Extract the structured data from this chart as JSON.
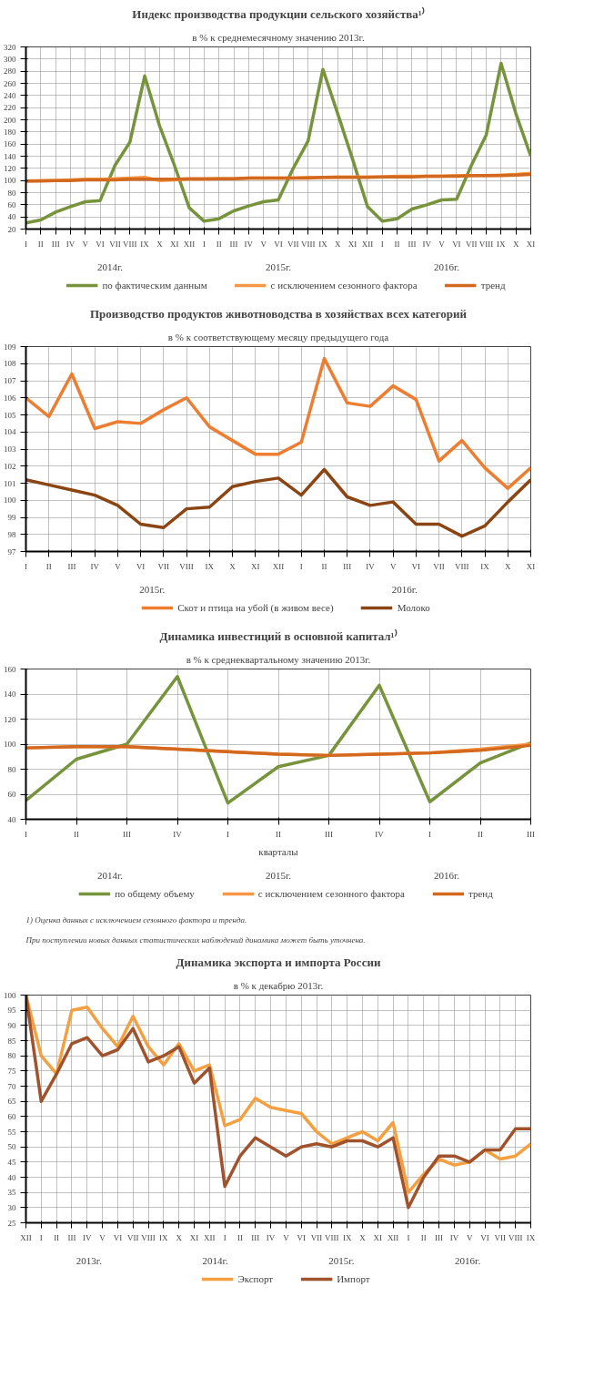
{
  "chart_data": [
    {
      "type": "line",
      "title": "Индекс производства продукции сельского хозяйства¹⁾",
      "subtitle": "в % к среднемесячному значению 2013г.",
      "categories": [
        "I",
        "II",
        "III",
        "IV",
        "V",
        "VI",
        "VII",
        "VIII",
        "IX",
        "X",
        "XI",
        "XII",
        "I",
        "II",
        "III",
        "IV",
        "V",
        "VI",
        "VII",
        "VIII",
        "IX",
        "X",
        "XI",
        "XII",
        "I",
        "II",
        "III",
        "IV",
        "V",
        "VI",
        "VII",
        "VIII",
        "IX",
        "X",
        "XI"
      ],
      "series": [
        {
          "name": "по фактическим данным",
          "color": "#77933c",
          "values": [
            30,
            35,
            48,
            57,
            65,
            67,
            125,
            163,
            272,
            190,
            125,
            55,
            33,
            37,
            50,
            58,
            65,
            68,
            120,
            165,
            283,
            210,
            135,
            57,
            33,
            37,
            53,
            60,
            68,
            69,
            125,
            175,
            293,
            210,
            140
          ]
        },
        {
          "name": "с исключением сезонного фактора",
          "color": "#f79646",
          "values": [
            99,
            100,
            100,
            101,
            102,
            102,
            103,
            104,
            105,
            100,
            101,
            102,
            102,
            103,
            103,
            104,
            104,
            104,
            104,
            105,
            105,
            106,
            106,
            106,
            106,
            107,
            107,
            107,
            107,
            108,
            108,
            108,
            109,
            110,
            112
          ]
        },
        {
          "name": "тренд",
          "color": "#d2691e",
          "values": [
            99,
            99,
            100,
            100,
            101,
            101,
            101,
            102,
            102,
            102,
            102,
            103,
            103,
            103,
            103,
            104,
            104,
            104,
            104,
            104,
            105,
            105,
            105,
            105,
            106,
            106,
            106,
            107,
            107,
            107,
            108,
            108,
            108,
            109,
            110
          ]
        }
      ],
      "ylim": [
        20,
        320
      ],
      "yticks": [
        20,
        40,
        60,
        80,
        100,
        120,
        140,
        160,
        180,
        200,
        220,
        240,
        260,
        280,
        300,
        320
      ],
      "grid": true,
      "legend": "bottom",
      "annotations": [
        "2014г.",
        "2015г.",
        "2016г."
      ]
    },
    {
      "type": "line",
      "title": "Производство продуктов животноводства в хозяйствах всех категорий",
      "subtitle": "в % к соответствующему месяцу предыдущего года",
      "categories": [
        "I",
        "II",
        "III",
        "IV",
        "V",
        "VI",
        "VII",
        "VIII",
        "IX",
        "X",
        "XI",
        "XII",
        "I",
        "II",
        "III",
        "IV",
        "V",
        "VI",
        "VII",
        "VIII",
        "IX",
        "X",
        "XI"
      ],
      "series": [
        {
          "name": "Скот и птица на убой (в живом весе)",
          "color": "#ed7d31",
          "values": [
            106.0,
            104.9,
            107.4,
            104.2,
            104.6,
            104.5,
            105.3,
            106.0,
            104.3,
            103.5,
            102.7,
            102.7,
            103.4,
            108.3,
            105.7,
            105.5,
            106.7,
            105.9,
            102.3,
            103.5,
            101.9,
            100.7,
            101.9
          ]
        },
        {
          "name": "Молоко",
          "color": "#8b4513",
          "values": [
            101.2,
            100.9,
            100.6,
            100.3,
            99.7,
            98.6,
            98.4,
            99.5,
            99.6,
            100.8,
            101.1,
            101.3,
            100.3,
            101.8,
            100.2,
            99.7,
            99.9,
            98.6,
            98.6,
            97.9,
            98.5,
            99.9,
            101.2
          ]
        }
      ],
      "ylim": [
        97,
        109
      ],
      "yticks": [
        97,
        98,
        99,
        100,
        101,
        102,
        103,
        104,
        105,
        106,
        107,
        108,
        109
      ],
      "grid": true,
      "legend": "bottom",
      "annotations": [
        "2015г.",
        "2016г."
      ]
    },
    {
      "type": "line",
      "title": "Динамика инвестиций в основной капитал¹⁾",
      "subtitle": "в % к среднеквартальному значению 2013г.",
      "xlabel": "кварталы",
      "categories": [
        "I",
        "II",
        "III",
        "IV",
        "I",
        "II",
        "III",
        "IV",
        "I",
        "II",
        "III"
      ],
      "series": [
        {
          "name": "по общему объему",
          "color": "#77933c",
          "values": [
            55,
            88,
            100,
            154,
            53,
            82,
            91,
            147,
            54,
            85,
            101
          ]
        },
        {
          "name": "с исключением сезонного фактора",
          "color": "#f79646",
          "values": [
            97,
            98,
            98,
            96,
            94,
            92,
            91,
            92,
            93,
            96,
            100
          ]
        },
        {
          "name": "тренд",
          "color": "#d2691e",
          "values": [
            97,
            98,
            98,
            96,
            94,
            92,
            91,
            92,
            93,
            95,
            99
          ]
        }
      ],
      "ylim": [
        40,
        160
      ],
      "yticks": [
        40,
        60,
        80,
        100,
        120,
        140,
        160
      ],
      "grid": true,
      "legend": "bottom",
      "annotations": [
        "2014г.",
        "2015г.",
        "2016г.",
        {
          "text": "1) Оценка данных с исключением сезонного фактора и тренда."
        },
        {
          "text": "При поступлении новых данных статистических наблюдений динамика может быть уточнена."
        }
      ]
    },
    {
      "type": "line",
      "title": "Динамика экспорта и импорта России",
      "subtitle": "в % к декабрю 2013г.",
      "categories": [
        "XII",
        "I",
        "II",
        "III",
        "IV",
        "V",
        "VI",
        "VII",
        "VIII",
        "IX",
        "X",
        "XI",
        "XII",
        "I",
        "II",
        "III",
        "IV",
        "V",
        "VI",
        "VII",
        "VIII",
        "IX",
        "X",
        "XI",
        "XII",
        "I",
        "II",
        "III",
        "IV",
        "V",
        "VI",
        "VII",
        "VIII",
        "IX"
      ],
      "series": [
        {
          "name": "Экспорт",
          "color": "#f4a040",
          "values": [
            100,
            80,
            74,
            95,
            96,
            89,
            83,
            93,
            83,
            77,
            84,
            75,
            77,
            57,
            59,
            66,
            63,
            62,
            61,
            55,
            51,
            53,
            55,
            52,
            58,
            35,
            41,
            46,
            44,
            45,
            49,
            46,
            47,
            51
          ]
        },
        {
          "name": "Импорт",
          "color": "#a0522d",
          "values": [
            100,
            65,
            74,
            84,
            86,
            80,
            82,
            89,
            78,
            80,
            83,
            71,
            76,
            37,
            47,
            53,
            50,
            47,
            50,
            51,
            50,
            52,
            52,
            50,
            53,
            30,
            40,
            47,
            47,
            45,
            49,
            49,
            56,
            56
          ]
        }
      ],
      "ylim": [
        25,
        100
      ],
      "yticks": [
        25,
        30,
        35,
        40,
        45,
        50,
        55,
        60,
        65,
        70,
        75,
        80,
        85,
        90,
        95,
        100
      ],
      "grid": true,
      "legend": "bottom",
      "annotations": [
        "2013г.",
        "2014г.",
        "2015г.",
        "2016г."
      ]
    }
  ]
}
